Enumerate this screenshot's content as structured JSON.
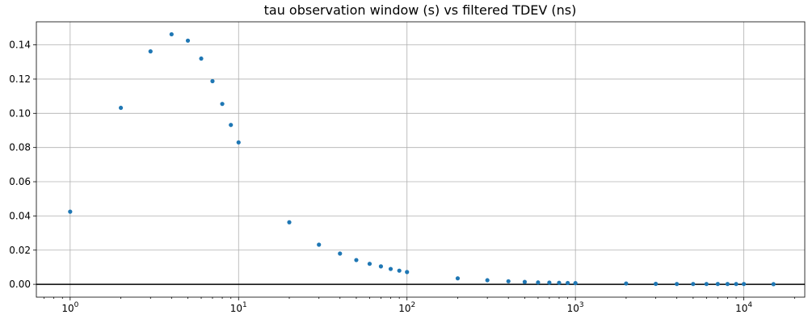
{
  "chart_data": {
    "type": "scatter",
    "title": "tau observation window (s) vs filtered TDEV (ns)",
    "xlabel": "",
    "ylabel": "",
    "xscale": "log",
    "xlim": [
      0.63,
      23000
    ],
    "ylim": [
      -0.0075,
      0.1535
    ],
    "xticks": [
      1,
      10,
      100,
      1000,
      10000
    ],
    "xtick_labels": [
      {
        "base": "10",
        "exp": "0"
      },
      {
        "base": "10",
        "exp": "1"
      },
      {
        "base": "10",
        "exp": "2"
      },
      {
        "base": "10",
        "exp": "3"
      },
      {
        "base": "10",
        "exp": "4"
      }
    ],
    "yticks": [
      0.0,
      0.02,
      0.04,
      0.06,
      0.08,
      0.1,
      0.12,
      0.14
    ],
    "ytick_labels": [
      "0.00",
      "0.02",
      "0.04",
      "0.06",
      "0.08",
      "0.10",
      "0.12",
      "0.14"
    ],
    "grid": true,
    "horizontal_line_y": 0,
    "marker_color": "#1f77b4",
    "points": [
      {
        "x": 1,
        "y": 0.0425
      },
      {
        "x": 2,
        "y": 0.1032
      },
      {
        "x": 3,
        "y": 0.1362
      },
      {
        "x": 4,
        "y": 0.1462
      },
      {
        "x": 5,
        "y": 0.1425
      },
      {
        "x": 6,
        "y": 0.132
      },
      {
        "x": 7,
        "y": 0.1188
      },
      {
        "x": 8,
        "y": 0.1055
      },
      {
        "x": 9,
        "y": 0.0932
      },
      {
        "x": 10,
        "y": 0.083
      },
      {
        "x": 20,
        "y": 0.0363
      },
      {
        "x": 30,
        "y": 0.0232
      },
      {
        "x": 40,
        "y": 0.018
      },
      {
        "x": 50,
        "y": 0.0142
      },
      {
        "x": 60,
        "y": 0.012
      },
      {
        "x": 70,
        "y": 0.0105
      },
      {
        "x": 80,
        "y": 0.009
      },
      {
        "x": 90,
        "y": 0.008
      },
      {
        "x": 100,
        "y": 0.0072
      },
      {
        "x": 200,
        "y": 0.0035
      },
      {
        "x": 300,
        "y": 0.0024
      },
      {
        "x": 400,
        "y": 0.0018
      },
      {
        "x": 500,
        "y": 0.0014
      },
      {
        "x": 600,
        "y": 0.0011
      },
      {
        "x": 700,
        "y": 0.001
      },
      {
        "x": 800,
        "y": 0.0009
      },
      {
        "x": 900,
        "y": 0.0008
      },
      {
        "x": 1000,
        "y": 0.0007
      },
      {
        "x": 2000,
        "y": 0.0005
      },
      {
        "x": 3000,
        "y": 0.0003
      },
      {
        "x": 4000,
        "y": 0.0002
      },
      {
        "x": 5000,
        "y": 0.0002
      },
      {
        "x": 6000,
        "y": 0.0002
      },
      {
        "x": 7000,
        "y": 0.0002
      },
      {
        "x": 8000,
        "y": 0.0002
      },
      {
        "x": 9000,
        "y": 0.0002
      },
      {
        "x": 10000,
        "y": 0.0002
      },
      {
        "x": 15000,
        "y": 0.0001
      }
    ]
  }
}
